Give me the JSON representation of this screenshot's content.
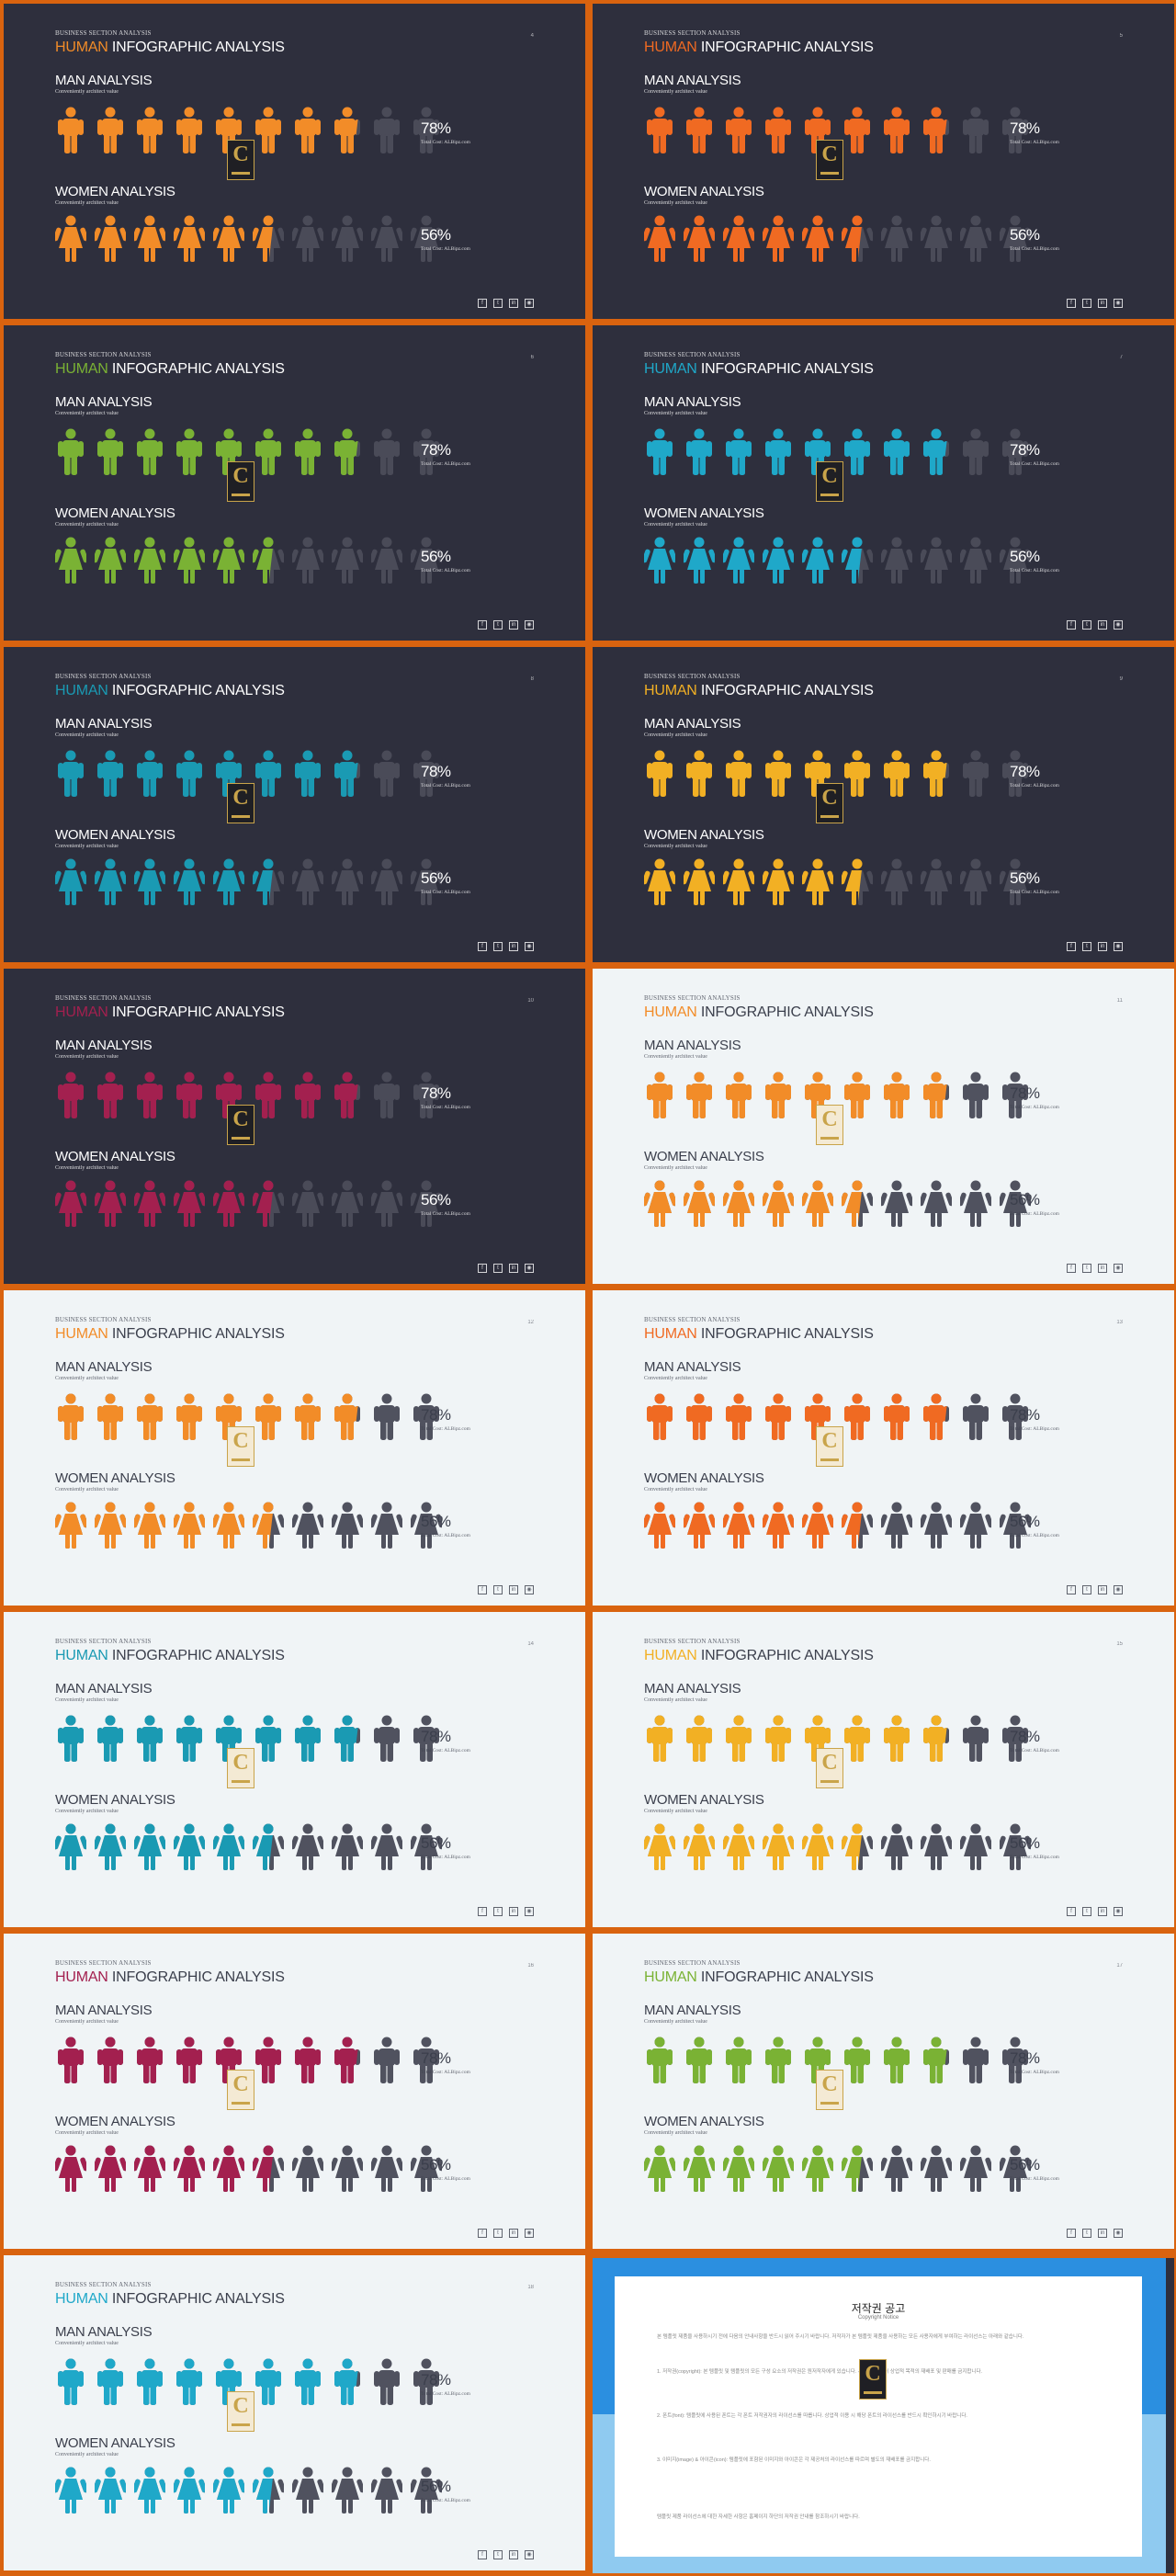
{
  "slide_common": {
    "top_label": "BUSINESS SECTION ANALYSIS",
    "title_word1": "HUMAN",
    "title_word2": "INFOGRAPHIC ANALYSIS",
    "man_title": "MAN ANALYSIS",
    "man_sub": "Conveniently architect value",
    "women_title": "WOMEN ANALYSIS",
    "women_sub": "Conveniently architect value",
    "man_value": "78%",
    "women_value": "56%",
    "cost_label": "Total Cost: ALBipz.com",
    "social_icons": [
      "facebook-icon",
      "twitter-icon",
      "linkedin-icon",
      "instagram-icon"
    ]
  },
  "infographic": {
    "man_figures_total": 10,
    "man_figures_filled": 7.8,
    "women_figures_total": 10,
    "women_figures_filled": 5.6
  },
  "slides": [
    {
      "theme": "dark",
      "accent": "#f28c28",
      "page": "4"
    },
    {
      "theme": "dark",
      "accent": "#f06a22",
      "page": "5"
    },
    {
      "theme": "dark",
      "accent": "#7ab234",
      "page": "6"
    },
    {
      "theme": "dark",
      "accent": "#1fa8c9",
      "page": "7"
    },
    {
      "theme": "dark",
      "accent": "#1a9ab3",
      "page": "8"
    },
    {
      "theme": "dark",
      "accent": "#f2b024",
      "page": "9"
    },
    {
      "theme": "dark",
      "accent": "#a3204f",
      "page": "10"
    },
    {
      "theme": "light",
      "accent": "#f28c28",
      "page": "11"
    },
    {
      "theme": "light",
      "accent": "#f28c28",
      "page": "12"
    },
    {
      "theme": "light",
      "accent": "#f06a22",
      "page": "13"
    },
    {
      "theme": "light",
      "accent": "#1a9ab3",
      "page": "14"
    },
    {
      "theme": "light",
      "accent": "#f2b024",
      "page": "15"
    },
    {
      "theme": "light",
      "accent": "#a3204f",
      "page": "16"
    },
    {
      "theme": "light",
      "accent": "#7ab234",
      "page": "17"
    },
    {
      "theme": "light",
      "accent": "#1fa8c9",
      "page": "18"
    }
  ],
  "copyright": {
    "title": "저작권 공고",
    "subtitle": "Copyright Notice",
    "paragraphs": [
      "본 템플릿 제품을 사용하시기 전에 다음의 안내사항을 반드시 읽어 주시기 바랍니다. 저작자가 본 템플릿 제품을 사용하는 모든 사용자에게 부여하는 라이선스는 아래와 같습니다.",
      "1. 저작권(copyright): 본 템플릿 및 템플릿의 모든 구성 요소의 저작권은 원저작자에게 있습니다. 사전 승인 없이 상업적 목적의 재배포 및 판매를 금지합니다.",
      "2. 폰트(font): 템플릿에 사용된 폰트는 각 폰트 저작권자의 라이선스를 따릅니다. 상업적 이용 시 해당 폰트의 라이선스를 반드시 확인하시기 바랍니다.",
      "3. 이미지(image) & 아이콘(icon): 템플릿에 포함된 이미지와 아이콘은 각 제공처의 라이선스를 따르며 별도의 재배포를 금지합니다.",
      "템플릿 제품 라이선스에 대한 자세한 사항은 홈페이지 하단의 저작권 안내를 참조하시기 바랍니다."
    ]
  }
}
